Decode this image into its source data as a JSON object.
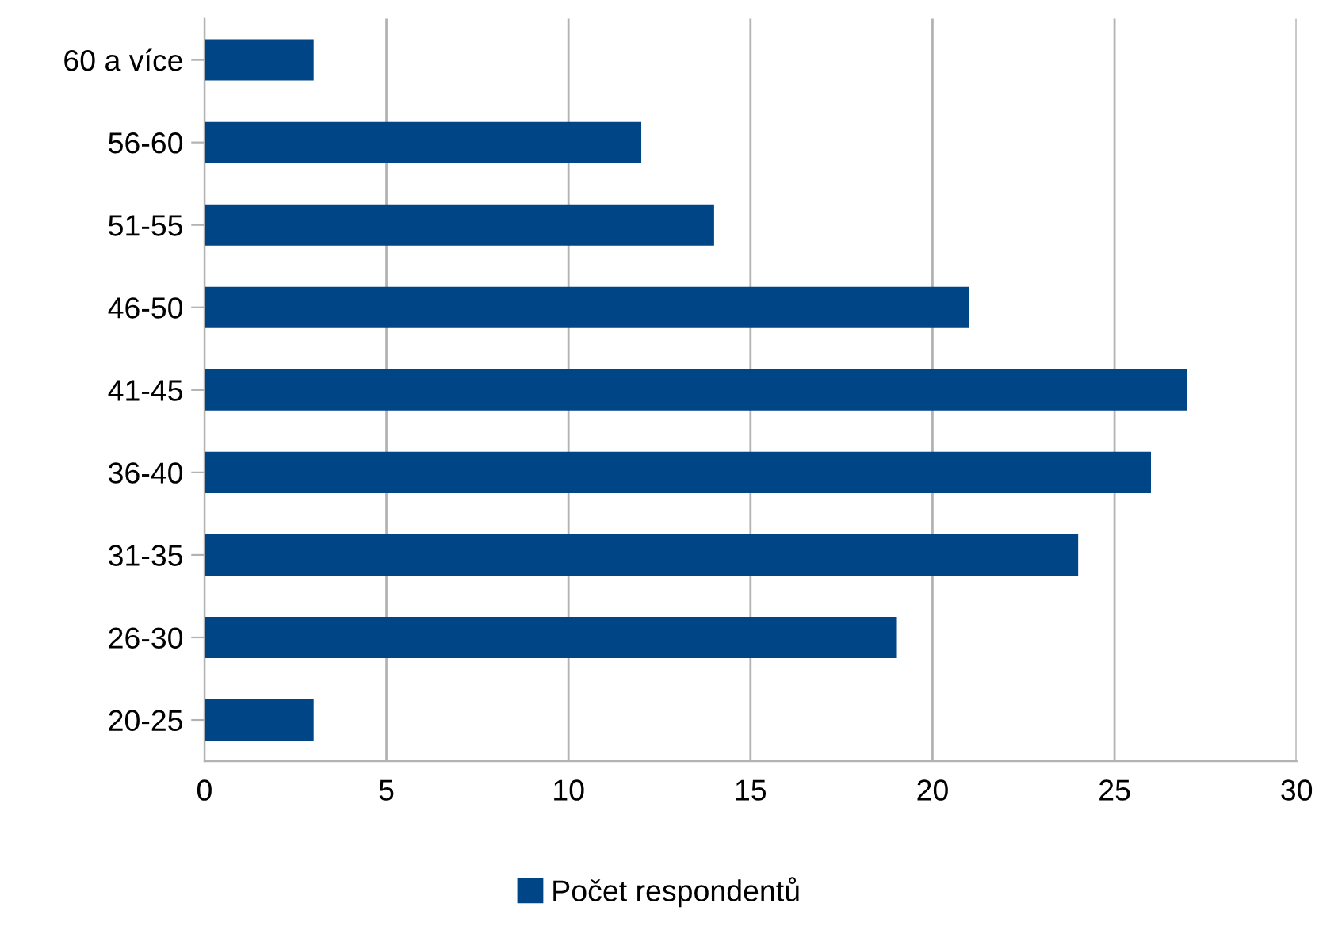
{
  "chart_data": {
    "type": "bar",
    "orientation": "horizontal",
    "categories": [
      "60 a více",
      "56-60",
      "51-55",
      "46-50",
      "41-45",
      "36-40",
      "31-35",
      "26-30",
      "20-25"
    ],
    "series": [
      {
        "name": "Počet respondentů",
        "color": "#004586",
        "values": [
          3,
          12,
          14,
          21,
          27,
          26,
          24,
          19,
          3
        ]
      }
    ],
    "xlim": [
      0,
      30
    ],
    "xticks": [
      0,
      5,
      10,
      15,
      20,
      25,
      30
    ],
    "grid": "x",
    "legend": "bottom"
  }
}
